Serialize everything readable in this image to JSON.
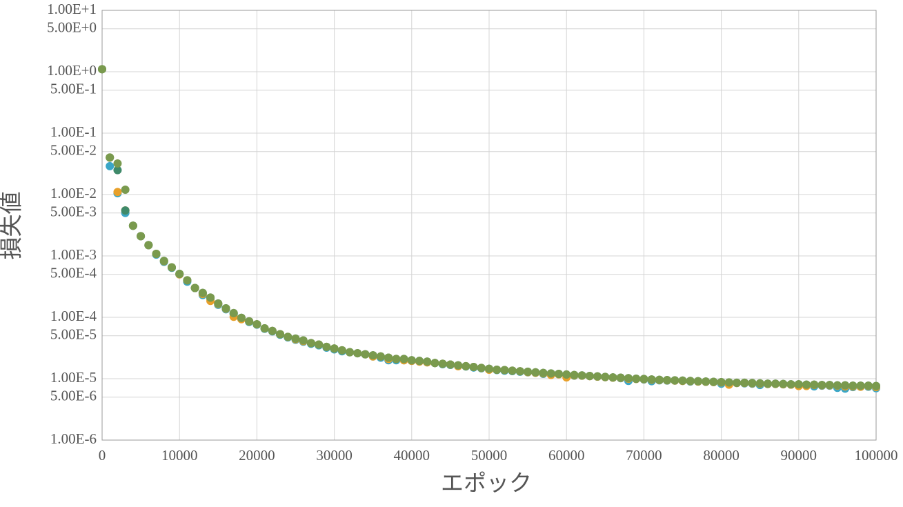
{
  "chart_data": {
    "type": "scatter",
    "xlabel": "エポック",
    "ylabel": "損失値",
    "x": [
      0,
      1000,
      2000,
      3000,
      4000,
      5000,
      6000,
      7000,
      8000,
      9000,
      10000,
      11000,
      12000,
      13000,
      14000,
      15000,
      16000,
      17000,
      18000,
      19000,
      20000,
      21000,
      22000,
      23000,
      24000,
      25000,
      26000,
      27000,
      28000,
      29000,
      30000,
      31000,
      32000,
      33000,
      34000,
      35000,
      36000,
      37000,
      38000,
      39000,
      40000,
      41000,
      42000,
      43000,
      44000,
      45000,
      46000,
      47000,
      48000,
      49000,
      50000,
      51000,
      52000,
      53000,
      54000,
      55000,
      56000,
      57000,
      58000,
      59000,
      60000,
      61000,
      62000,
      63000,
      64000,
      65000,
      66000,
      67000,
      68000,
      69000,
      70000,
      71000,
      72000,
      73000,
      74000,
      75000,
      76000,
      77000,
      78000,
      79000,
      80000,
      81000,
      82000,
      83000,
      84000,
      85000,
      86000,
      87000,
      88000,
      89000,
      90000,
      91000,
      92000,
      93000,
      94000,
      95000,
      96000,
      97000,
      98000,
      99000,
      100000
    ],
    "series": [
      {
        "color": "#3aa6c6",
        "values": [
          1.1,
          0.029,
          0.0105,
          0.005,
          0.0031,
          0.0021,
          0.0015,
          0.00105,
          0.0008,
          0.00064,
          0.0005,
          0.00038,
          0.0003,
          0.00023,
          0.0002,
          0.00016,
          0.000135,
          0.000112,
          9.5e-05,
          8.4e-05,
          7.6e-05,
          6.5e-05,
          5.9e-05,
          5.2e-05,
          4.7e-05,
          4.3e-05,
          4e-05,
          3.7e-05,
          3.5e-05,
          3.2e-05,
          3e-05,
          2.8e-05,
          2.7e-05,
          2.6e-05,
          2.5e-05,
          2.3e-05,
          2.2e-05,
          2e-05,
          2e-05,
          2e-05,
          1.95e-05,
          1.9e-05,
          1.85e-05,
          1.8e-05,
          1.72e-05,
          1.68e-05,
          1.62e-05,
          1.58e-05,
          1.52e-05,
          1.48e-05,
          1.42e-05,
          1.38e-05,
          1.35e-05,
          1.33e-05,
          1.3e-05,
          1.27e-05,
          1.25e-05,
          1.2e-05,
          1.2e-05,
          1.18e-05,
          1.15e-05,
          1.12e-05,
          1.12e-05,
          1.1e-05,
          1.08e-05,
          1.06e-05,
          1.04e-05,
          1.02e-05,
          9.2e-06,
          9.9e-06,
          9.7e-06,
          9.1e-06,
          9.4e-06,
          9.3e-06,
          9.3e-06,
          9.2e-06,
          9e-06,
          9e-06,
          8.9e-06,
          8.8e-06,
          8.3e-06,
          8.5e-06,
          8.5e-06,
          8.4e-06,
          8.3e-06,
          7.9e-06,
          8.2e-06,
          8.2e-06,
          8.1e-06,
          8e-06,
          7.9e-06,
          7.8e-06,
          7.5e-06,
          7.7e-06,
          7.7e-06,
          7.1e-06,
          6.9e-06,
          7.3e-06,
          7.4e-06,
          7.4e-06,
          7e-06
        ]
      },
      {
        "color": "#e8a02a",
        "values": [
          1.1,
          0.04,
          0.011,
          0.0055,
          0.0031,
          0.0021,
          0.0015,
          0.00108,
          0.00082,
          0.00065,
          0.0005,
          0.0004,
          0.0003,
          0.00024,
          0.000185,
          0.000165,
          0.000138,
          0.000102,
          9.3e-05,
          8.6e-05,
          7.7e-05,
          6.6e-05,
          6e-05,
          5.3e-05,
          4.8e-05,
          4.4e-05,
          4.1e-05,
          3.8e-05,
          3.6e-05,
          3.3e-05,
          3.1e-05,
          2.9e-05,
          2.7e-05,
          2.6e-05,
          2.5e-05,
          2.3e-05,
          2.3e-05,
          2.1e-05,
          2.1e-05,
          2e-05,
          1.95e-05,
          1.9e-05,
          1.85e-05,
          1.8e-05,
          1.75e-05,
          1.7e-05,
          1.6e-05,
          1.6e-05,
          1.55e-05,
          1.5e-05,
          1.4e-05,
          1.4e-05,
          1.38e-05,
          1.35e-05,
          1.32e-05,
          1.28e-05,
          1.25e-05,
          1.22e-05,
          1.15e-05,
          1.18e-05,
          1.05e-05,
          1.13e-05,
          1.12e-05,
          1.1e-05,
          1.08e-05,
          1.06e-05,
          1.04e-05,
          1.03e-05,
          1e-05,
          9.9e-06,
          9.8e-06,
          9.6e-06,
          9.5e-06,
          9.4e-06,
          9.3e-06,
          9.2e-06,
          9.1e-06,
          9e-06,
          8.9e-06,
          8.8e-06,
          8.7e-06,
          8e-06,
          8.5e-06,
          8.5e-06,
          8.4e-06,
          8.3e-06,
          8.2e-06,
          8.2e-06,
          8.1e-06,
          8e-06,
          7.6e-06,
          7.6e-06,
          7.9e-06,
          7.8e-06,
          7.8e-06,
          7.7e-06,
          7.5e-06,
          7.5e-06,
          7.4e-06,
          7.6e-06,
          7.3e-06
        ]
      },
      {
        "color": "#3f8a6a",
        "values": [
          1.1,
          0.04,
          0.025,
          0.0055,
          0.0031,
          0.0021,
          0.0015,
          0.00108,
          0.00083,
          0.00065,
          0.00051,
          0.0004,
          0.0003,
          0.00025,
          0.00021,
          0.000168,
          0.00014,
          0.000117,
          9.8e-05,
          8.6e-05,
          7.7e-05,
          6.6e-05,
          6e-05,
          5.3e-05,
          4.8e-05,
          4.5e-05,
          4.2e-05,
          3.8e-05,
          3.6e-05,
          3.3e-05,
          3.1e-05,
          2.9e-05,
          2.7e-05,
          2.6e-05,
          2.5e-05,
          2.4e-05,
          2.3e-05,
          2.2e-05,
          2.1e-05,
          2.1e-05,
          2e-05,
          1.95e-05,
          1.9e-05,
          1.8e-05,
          1.75e-05,
          1.7e-05,
          1.65e-05,
          1.6e-05,
          1.55e-05,
          1.5e-05,
          1.45e-05,
          1.4e-05,
          1.38e-05,
          1.35e-05,
          1.32e-05,
          1.3e-05,
          1.27e-05,
          1.24e-05,
          1.22e-05,
          1.2e-05,
          1.17e-05,
          1.15e-05,
          1.13e-05,
          1.11e-05,
          1.09e-05,
          1.07e-05,
          1.05e-05,
          1.04e-05,
          1.02e-05,
          1e-05,
          9.9e-06,
          9.7e-06,
          9.6e-06,
          9.5e-06,
          9.4e-06,
          9.3e-06,
          9.2e-06,
          9.1e-06,
          9e-06,
          8.9e-06,
          8.8e-06,
          8.7e-06,
          8.6e-06,
          8.6e-06,
          8.5e-06,
          8.4e-06,
          8.3e-06,
          8.3e-06,
          8.2e-06,
          8.1e-06,
          8.1e-06,
          8e-06,
          8e-06,
          7.9e-06,
          7.9e-06,
          7.8e-06,
          7.8e-06,
          7.7e-06,
          7.7e-06,
          7.7e-06,
          7.6e-06
        ]
      },
      {
        "color": "#7a9a4e",
        "values": [
          1.1,
          0.04,
          0.032,
          0.012,
          0.0031,
          0.0021,
          0.0015,
          0.00108,
          0.00083,
          0.00065,
          0.00051,
          0.0004,
          0.0003,
          0.00025,
          0.00021,
          0.000168,
          0.00014,
          0.000117,
          9.8e-05,
          8.6e-05,
          7.7e-05,
          6.6e-05,
          6e-05,
          5.3e-05,
          4.8e-05,
          4.5e-05,
          4.2e-05,
          3.8e-05,
          3.6e-05,
          3.3e-05,
          3.1e-05,
          2.9e-05,
          2.7e-05,
          2.6e-05,
          2.5e-05,
          2.4e-05,
          2.3e-05,
          2.2e-05,
          2.1e-05,
          2.1e-05,
          2e-05,
          1.95e-05,
          1.9e-05,
          1.8e-05,
          1.75e-05,
          1.7e-05,
          1.65e-05,
          1.6e-05,
          1.55e-05,
          1.5e-05,
          1.45e-05,
          1.4e-05,
          1.38e-05,
          1.35e-05,
          1.32e-05,
          1.3e-05,
          1.27e-05,
          1.24e-05,
          1.22e-05,
          1.2e-05,
          1.17e-05,
          1.15e-05,
          1.13e-05,
          1.11e-05,
          1.09e-05,
          1.07e-05,
          1.05e-05,
          1.04e-05,
          1.02e-05,
          1e-05,
          9.9e-06,
          9.7e-06,
          9.6e-06,
          9.5e-06,
          9.4e-06,
          9.3e-06,
          9.2e-06,
          9.1e-06,
          9e-06,
          8.9e-06,
          8.8e-06,
          8.7e-06,
          8.6e-06,
          8.6e-06,
          8.5e-06,
          8.4e-06,
          8.3e-06,
          8.3e-06,
          8.2e-06,
          8.1e-06,
          8.1e-06,
          8e-06,
          8e-06,
          7.9e-06,
          7.9e-06,
          7.8e-06,
          7.8e-06,
          7.7e-06,
          7.7e-06,
          7.7e-06,
          7.6e-06
        ]
      }
    ],
    "xlim": [
      0,
      100000
    ],
    "xticks": [
      0,
      10000,
      20000,
      30000,
      40000,
      50000,
      60000,
      70000,
      80000,
      90000,
      100000
    ],
    "ylim": [
      1e-06,
      10
    ],
    "ylog": true,
    "grid": true,
    "yticks": [
      {
        "value": 10,
        "label": "1.00E+1"
      },
      {
        "value": 5,
        "label": "5.00E+0"
      },
      {
        "value": 1,
        "label": "1.00E+0"
      },
      {
        "value": 0.5,
        "label": "5.00E-1"
      },
      {
        "value": 0.1,
        "label": "1.00E-1"
      },
      {
        "value": 0.05,
        "label": "5.00E-2"
      },
      {
        "value": 0.01,
        "label": "1.00E-2"
      },
      {
        "value": 0.005,
        "label": "5.00E-3"
      },
      {
        "value": 0.001,
        "label": "1.00E-3"
      },
      {
        "value": 0.0005,
        "label": "5.00E-4"
      },
      {
        "value": 0.0001,
        "label": "1.00E-4"
      },
      {
        "value": 5e-05,
        "label": "5.00E-5"
      },
      {
        "value": 1e-05,
        "label": "1.00E-5"
      },
      {
        "value": 5e-06,
        "label": "5.00E-6"
      },
      {
        "value": 1e-06,
        "label": "1.00E-6"
      }
    ]
  }
}
